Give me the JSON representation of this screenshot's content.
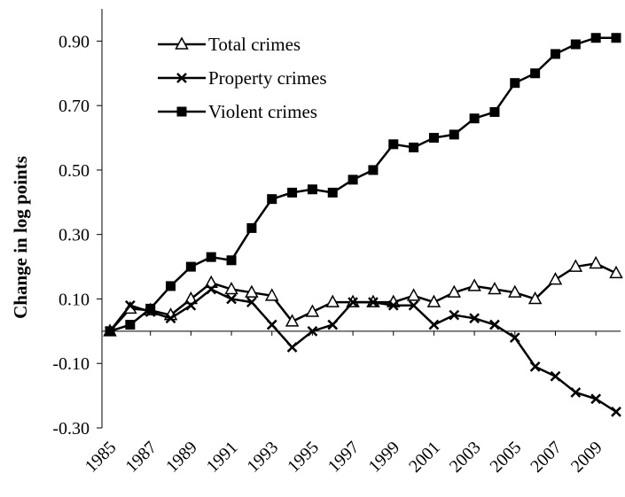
{
  "chart_data": {
    "type": "line",
    "y_label": "Change in log points",
    "x": [
      1985,
      1986,
      1987,
      1988,
      1989,
      1990,
      1991,
      1992,
      1993,
      1994,
      1995,
      1996,
      1997,
      1998,
      1999,
      2000,
      2001,
      2002,
      2003,
      2004,
      2005,
      2006,
      2007,
      2008,
      2009,
      2010
    ],
    "series": [
      {
        "name": "Total crimes",
        "color": "#000000",
        "marker": "triangle-open",
        "values": [
          0,
          0.07,
          0.065,
          0.05,
          0.1,
          0.15,
          0.13,
          0.12,
          0.11,
          0.03,
          0.06,
          0.09,
          0.09,
          0.09,
          0.09,
          0.11,
          0.09,
          0.12,
          0.14,
          0.13,
          0.12,
          0.1,
          0.16,
          0.2,
          0.21,
          0.18
        ]
      },
      {
        "name": "Property crimes",
        "color": "#000000",
        "marker": "x",
        "values": [
          0,
          0.08,
          0.06,
          0.04,
          0.08,
          0.13,
          0.1,
          0.09,
          0.02,
          -0.05,
          0.0,
          0.02,
          0.09,
          0.09,
          0.08,
          0.08,
          0.02,
          0.05,
          0.04,
          0.02,
          -0.02,
          -0.11,
          -0.14,
          -0.19,
          -0.21,
          -0.25
        ]
      },
      {
        "name": "Violent crimes",
        "color": "#000000",
        "marker": "square",
        "values": [
          0,
          0.02,
          0.07,
          0.14,
          0.2,
          0.23,
          0.22,
          0.32,
          0.41,
          0.43,
          0.44,
          0.43,
          0.47,
          0.5,
          0.58,
          0.57,
          0.6,
          0.61,
          0.66,
          0.68,
          0.77,
          0.8,
          0.86,
          0.89,
          0.91,
          0.91
        ]
      }
    ],
    "xlim": [
      1985,
      2010
    ],
    "xticks": [
      1985,
      1987,
      1989,
      1991,
      1993,
      1995,
      1997,
      1999,
      2001,
      2003,
      2005,
      2007,
      2009
    ],
    "ylim": [
      -0.3,
      1.0
    ],
    "yticks": [
      {
        "value": -0.3,
        "label": "-0.30"
      },
      {
        "value": -0.1,
        "label": "-0.10"
      },
      {
        "value": 0.1,
        "label": "0.10"
      },
      {
        "value": 0.3,
        "label": "0.30"
      },
      {
        "value": 0.5,
        "label": "0.50"
      },
      {
        "value": 0.7,
        "label": "0.70"
      },
      {
        "value": 0.9,
        "label": "0.90"
      }
    ],
    "legend": "top-left",
    "grid": false
  }
}
